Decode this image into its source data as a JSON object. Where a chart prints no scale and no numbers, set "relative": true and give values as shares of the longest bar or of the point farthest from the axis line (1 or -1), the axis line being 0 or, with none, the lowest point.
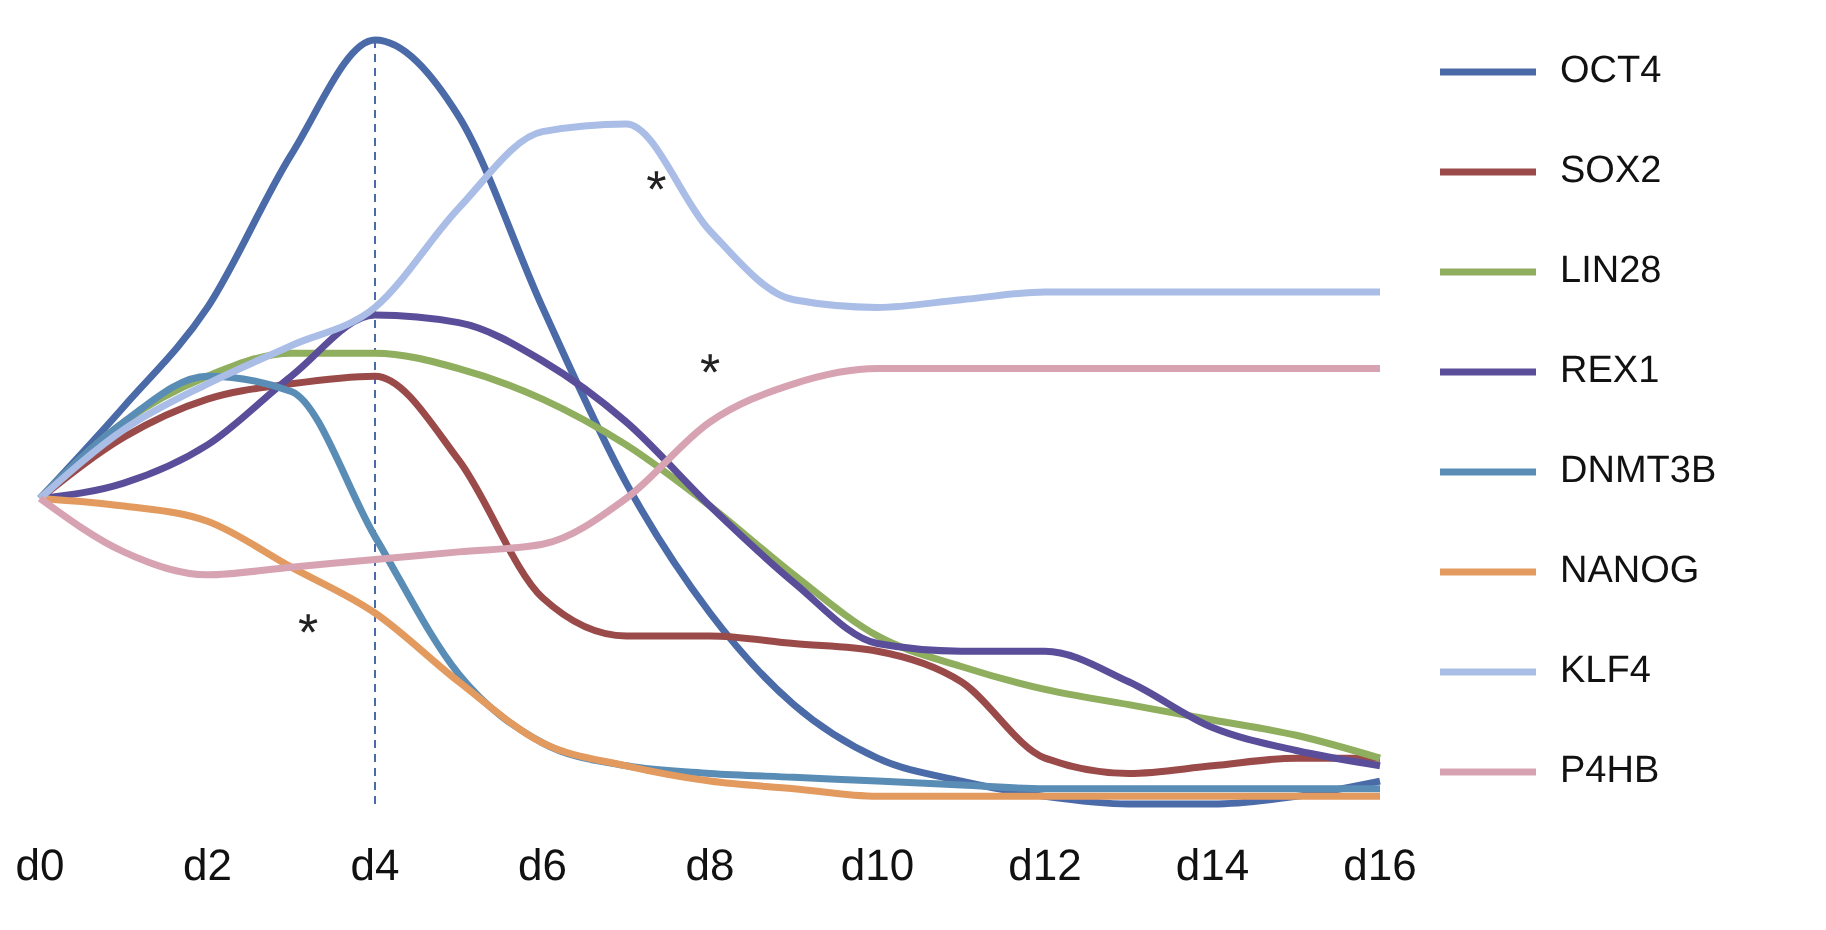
{
  "chart_data": {
    "type": "line",
    "relative": true,
    "categories": [
      "d0",
      null,
      "d2",
      null,
      "d4",
      null,
      "d6",
      null,
      "d8",
      null,
      "d10",
      null,
      "d12",
      null,
      "d14",
      null,
      "d16"
    ],
    "series": [
      {
        "name": "OCT4",
        "color": "#4a6aa8",
        "values": [
          0.4,
          0.52,
          0.65,
          0.85,
          1,
          0.9,
          0.65,
          0.42,
          0.25,
          0.13,
          0.06,
          0.03,
          0.01,
          0,
          0,
          0.01,
          0.03
        ]
      },
      {
        "name": "SOX2",
        "color": "#9b4a4a",
        "values": [
          0.4,
          0.48,
          0.53,
          0.55,
          0.56,
          0.45,
          0.27,
          0.22,
          0.22,
          0.21,
          0.2,
          0.16,
          0.06,
          0.04,
          0.05,
          0.06,
          0.06
        ]
      },
      {
        "name": "LIN28",
        "color": "#8fae5e",
        "values": [
          0.4,
          0.5,
          0.56,
          0.59,
          0.59,
          0.57,
          0.53,
          0.47,
          0.39,
          0.3,
          0.22,
          0.18,
          0.15,
          0.13,
          0.11,
          0.09,
          0.06
        ]
      },
      {
        "name": "REX1",
        "color": "#5a4e9a",
        "values": [
          0.4,
          0.42,
          0.47,
          0.56,
          0.64,
          0.63,
          0.58,
          0.5,
          0.39,
          0.29,
          0.21,
          0.2,
          0.2,
          0.16,
          0.1,
          0.07,
          0.05
        ]
      },
      {
        "name": "DNMT3B",
        "color": "#5a8db5",
        "values": [
          0.4,
          0.5,
          0.56,
          0.54,
          0.35,
          0.17,
          0.08,
          0.05,
          0.04,
          0.035,
          0.03,
          0.025,
          0.02,
          0.02,
          0.02,
          0.02,
          0.02
        ]
      },
      {
        "name": "NANOG",
        "color": "#e39a5e",
        "values": [
          0.4,
          0.39,
          0.37,
          0.31,
          0.25,
          0.16,
          0.08,
          0.05,
          0.03,
          0.02,
          0.01,
          0.01,
          0.01,
          0.01,
          0.01,
          0.01,
          0.01
        ]
      },
      {
        "name": "KLF4",
        "color": "#a9bde6",
        "values": [
          0.4,
          0.49,
          0.55,
          0.6,
          0.65,
          0.78,
          0.88,
          0.89,
          0.75,
          0.66,
          0.65,
          0.66,
          0.67,
          0.67,
          0.67,
          0.67,
          0.67
        ]
      },
      {
        "name": "P4HB",
        "color": "#d7a3b2",
        "values": [
          0.4,
          0.33,
          0.3,
          0.31,
          0.32,
          0.33,
          0.34,
          0.4,
          0.5,
          0.55,
          0.57,
          0.57,
          0.57,
          0.57,
          0.57,
          0.57,
          0.57
        ]
      }
    ],
    "ref_lines": [
      {
        "axis": "x",
        "value": "d4",
        "color": "#4a6aa8",
        "line_style": "dashed"
      }
    ],
    "annotations": [
      "*",
      "*",
      "*"
    ],
    "legend": "right",
    "line_style": "solid",
    "marker": "none"
  }
}
